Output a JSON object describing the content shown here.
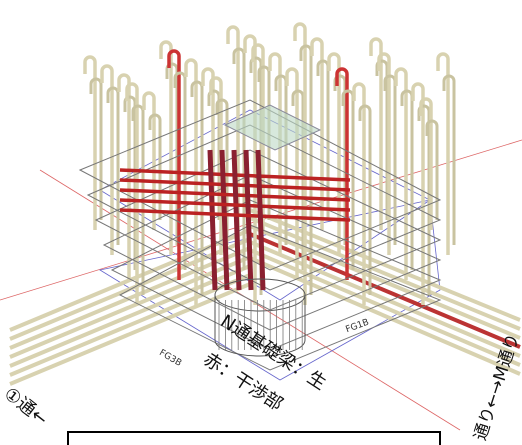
{
  "labels": {
    "beam_left": "FG3B",
    "beam_right": "FG1B",
    "beam_note": "N通基礎梁：生",
    "red_note": "赤：干渉部",
    "axis_left": "①通←",
    "axis_right": "通り←→M通り"
  }
}
